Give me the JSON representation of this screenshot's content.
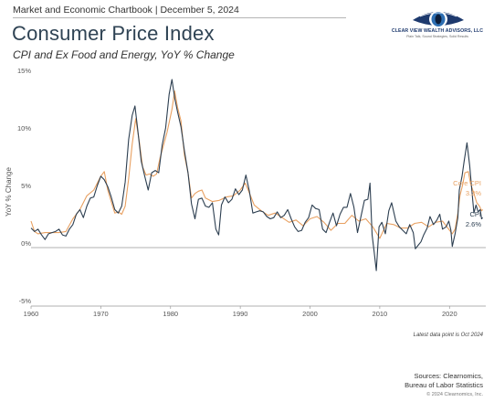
{
  "header": {
    "publication": "Market and Economic Chartbook | December 5, 2024",
    "logo_name": "CLEAR VIEW WEALTH ADVISORS, LLC",
    "logo_tagline": "Plain Talk, Sound Strategies, Solid Results"
  },
  "chart_data": {
    "type": "line",
    "title": "Consumer Price Index",
    "subtitle": "CPI and Ex Food and Energy, YoY % Change",
    "ylabel": "YoY % Change",
    "xlabel": "",
    "xlim": [
      1960,
      2025.2
    ],
    "ylim": [
      -5,
      15
    ],
    "x_ticks": [
      1960,
      1970,
      1980,
      1990,
      2000,
      2010,
      2020
    ],
    "y_ticks": [
      -5,
      0,
      5,
      10,
      15
    ],
    "y_tick_labels": [
      "-5%",
      "0%",
      "5%",
      "10%",
      "15%"
    ],
    "legend": "inline-right",
    "colors": {
      "cpi": "#2c3e50",
      "core": "#e8a061",
      "zero_line": "#999999"
    },
    "series": [
      {
        "name": "CPI",
        "label_value": "2.6%",
        "color": "#2c3e50",
        "points": [
          [
            1960,
            1.7
          ],
          [
            1960.5,
            1.4
          ],
          [
            1961,
            1.6
          ],
          [
            1961.5,
            1.1
          ],
          [
            1962,
            0.7
          ],
          [
            1962.5,
            1.2
          ],
          [
            1963,
            1.3
          ],
          [
            1963.5,
            1.4
          ],
          [
            1964,
            1.6
          ],
          [
            1964.5,
            1.1
          ],
          [
            1965,
            1.0
          ],
          [
            1965.5,
            1.6
          ],
          [
            1966,
            2.0
          ],
          [
            1966.5,
            2.9
          ],
          [
            1967,
            3.3
          ],
          [
            1967.5,
            2.6
          ],
          [
            1968,
            3.6
          ],
          [
            1968.5,
            4.3
          ],
          [
            1969,
            4.4
          ],
          [
            1969.5,
            5.4
          ],
          [
            1970,
            6.2
          ],
          [
            1970.5,
            5.9
          ],
          [
            1971,
            5.3
          ],
          [
            1971.5,
            4.4
          ],
          [
            1972,
            3.3
          ],
          [
            1972.5,
            3.0
          ],
          [
            1973,
            3.6
          ],
          [
            1973.5,
            5.7
          ],
          [
            1974,
            9.4
          ],
          [
            1974.5,
            11.5
          ],
          [
            1974.9,
            12.3
          ],
          [
            1975.3,
            10.2
          ],
          [
            1975.8,
            7.5
          ],
          [
            1976.3,
            6.2
          ],
          [
            1976.8,
            5.0
          ],
          [
            1977.3,
            6.5
          ],
          [
            1977.8,
            6.7
          ],
          [
            1978.3,
            6.5
          ],
          [
            1978.8,
            8.9
          ],
          [
            1979.3,
            10.4
          ],
          [
            1979.8,
            13.3
          ],
          [
            1980.2,
            14.6
          ],
          [
            1980.6,
            13.0
          ],
          [
            1981,
            11.8
          ],
          [
            1981.5,
            10.5
          ],
          [
            1982,
            8.4
          ],
          [
            1982.5,
            6.5
          ],
          [
            1983,
            3.8
          ],
          [
            1983.5,
            2.5
          ],
          [
            1984,
            4.2
          ],
          [
            1984.5,
            4.3
          ],
          [
            1985,
            3.6
          ],
          [
            1985.5,
            3.5
          ],
          [
            1986,
            3.9
          ],
          [
            1986.5,
            1.6
          ],
          [
            1986.9,
            1.1
          ],
          [
            1987.3,
            3.7
          ],
          [
            1987.8,
            4.4
          ],
          [
            1988.3,
            3.9
          ],
          [
            1988.8,
            4.2
          ],
          [
            1989.3,
            5.1
          ],
          [
            1989.8,
            4.6
          ],
          [
            1990.3,
            5.0
          ],
          [
            1990.8,
            6.3
          ],
          [
            1991.3,
            4.9
          ],
          [
            1991.8,
            3.0
          ],
          [
            1992.3,
            3.1
          ],
          [
            1992.8,
            3.2
          ],
          [
            1993.3,
            3.1
          ],
          [
            1993.8,
            2.7
          ],
          [
            1994.3,
            2.5
          ],
          [
            1994.8,
            2.6
          ],
          [
            1995.3,
            3.1
          ],
          [
            1995.8,
            2.6
          ],
          [
            1996.3,
            2.8
          ],
          [
            1996.8,
            3.3
          ],
          [
            1997.3,
            2.5
          ],
          [
            1997.8,
            1.8
          ],
          [
            1998.3,
            1.4
          ],
          [
            1998.8,
            1.5
          ],
          [
            1999.3,
            2.2
          ],
          [
            1999.8,
            2.6
          ],
          [
            2000.3,
            3.7
          ],
          [
            2000.8,
            3.4
          ],
          [
            2001.3,
            3.3
          ],
          [
            2001.8,
            1.6
          ],
          [
            2002.3,
            1.3
          ],
          [
            2002.8,
            2.2
          ],
          [
            2003.3,
            3.0
          ],
          [
            2003.8,
            1.9
          ],
          [
            2004.3,
            2.9
          ],
          [
            2004.8,
            3.5
          ],
          [
            2005.3,
            3.5
          ],
          [
            2005.8,
            4.7
          ],
          [
            2006.3,
            3.5
          ],
          [
            2006.8,
            1.3
          ],
          [
            2007.3,
            2.7
          ],
          [
            2007.8,
            4.1
          ],
          [
            2008.3,
            4.2
          ],
          [
            2008.6,
            5.6
          ],
          [
            2008.9,
            1.1
          ],
          [
            2009.2,
            -0.4
          ],
          [
            2009.5,
            -2.0
          ],
          [
            2009.9,
            1.8
          ],
          [
            2010.3,
            2.2
          ],
          [
            2010.8,
            1.2
          ],
          [
            2011.3,
            3.2
          ],
          [
            2011.7,
            3.9
          ],
          [
            2012.3,
            2.3
          ],
          [
            2012.8,
            1.8
          ],
          [
            2013.3,
            1.5
          ],
          [
            2013.8,
            1.2
          ],
          [
            2014.3,
            2.0
          ],
          [
            2014.8,
            1.3
          ],
          [
            2015.1,
            -0.1
          ],
          [
            2015.5,
            0.2
          ],
          [
            2015.9,
            0.5
          ],
          [
            2016.3,
            1.1
          ],
          [
            2016.8,
            1.7
          ],
          [
            2017.2,
            2.7
          ],
          [
            2017.7,
            2.0
          ],
          [
            2018.2,
            2.4
          ],
          [
            2018.6,
            2.9
          ],
          [
            2019.0,
            1.6
          ],
          [
            2019.5,
            1.8
          ],
          [
            2019.9,
            2.3
          ],
          [
            2020.2,
            1.5
          ],
          [
            2020.4,
            0.1
          ],
          [
            2020.8,
            1.2
          ],
          [
            2021.2,
            2.6
          ],
          [
            2021.4,
            5.0
          ],
          [
            2021.8,
            6.2
          ],
          [
            2022.1,
            7.5
          ],
          [
            2022.5,
            9.1
          ],
          [
            2022.9,
            7.1
          ],
          [
            2023.2,
            5.0
          ],
          [
            2023.5,
            3.0
          ],
          [
            2023.8,
            3.7
          ],
          [
            2024.1,
            3.1
          ],
          [
            2024.4,
            3.3
          ],
          [
            2024.6,
            2.5
          ],
          [
            2024.75,
            2.6
          ]
        ]
      },
      {
        "name": "Core CPI",
        "label_value": "3.3%",
        "color": "#e8a061",
        "points": [
          [
            1960,
            2.3
          ],
          [
            1960.5,
            1.4
          ],
          [
            1961,
            1.2
          ],
          [
            1962,
            1.3
          ],
          [
            1963,
            1.3
          ],
          [
            1964,
            1.3
          ],
          [
            1965,
            1.4
          ],
          [
            1966,
            2.5
          ],
          [
            1967,
            3.3
          ],
          [
            1968,
            4.5
          ],
          [
            1969,
            5.0
          ],
          [
            1970,
            6.2
          ],
          [
            1970.5,
            6.6
          ],
          [
            1971,
            5.0
          ],
          [
            1971.5,
            4.0
          ],
          [
            1972,
            3.0
          ],
          [
            1972.5,
            3.1
          ],
          [
            1973,
            2.9
          ],
          [
            1973.5,
            3.6
          ],
          [
            1974,
            6.0
          ],
          [
            1974.5,
            9.0
          ],
          [
            1975,
            11.2
          ],
          [
            1975.5,
            9.3
          ],
          [
            1976,
            7.0
          ],
          [
            1976.5,
            6.3
          ],
          [
            1977,
            6.4
          ],
          [
            1977.5,
            6.2
          ],
          [
            1978,
            6.4
          ],
          [
            1978.5,
            7.8
          ],
          [
            1979,
            8.9
          ],
          [
            1979.5,
            10.0
          ],
          [
            1980.2,
            12.0
          ],
          [
            1980.6,
            13.6
          ],
          [
            1981,
            12.2
          ],
          [
            1981.5,
            11.0
          ],
          [
            1982,
            8.0
          ],
          [
            1982.5,
            6.5
          ],
          [
            1983,
            4.3
          ],
          [
            1983.5,
            4.7
          ],
          [
            1984,
            4.9
          ],
          [
            1984.5,
            5.0
          ],
          [
            1985,
            4.3
          ],
          [
            1986,
            4.0
          ],
          [
            1987,
            4.1
          ],
          [
            1988,
            4.4
          ],
          [
            1989,
            4.5
          ],
          [
            1990,
            5.0
          ],
          [
            1990.7,
            5.6
          ],
          [
            1991,
            5.2
          ],
          [
            1992,
            3.7
          ],
          [
            1993,
            3.2
          ],
          [
            1994,
            2.8
          ],
          [
            1995,
            3.0
          ],
          [
            1996,
            2.6
          ],
          [
            1997,
            2.2
          ],
          [
            1998,
            2.4
          ],
          [
            1999,
            1.9
          ],
          [
            2000,
            2.5
          ],
          [
            2001,
            2.7
          ],
          [
            2002,
            2.2
          ],
          [
            2003,
            1.5
          ],
          [
            2004,
            2.1
          ],
          [
            2005,
            2.1
          ],
          [
            2006,
            2.8
          ],
          [
            2007,
            2.3
          ],
          [
            2008,
            2.5
          ],
          [
            2009,
            1.8
          ],
          [
            2010,
            0.8
          ],
          [
            2011,
            2.1
          ],
          [
            2012,
            2.0
          ],
          [
            2013,
            1.7
          ],
          [
            2014,
            1.7
          ],
          [
            2015,
            2.1
          ],
          [
            2016,
            2.2
          ],
          [
            2017,
            1.8
          ],
          [
            2018,
            2.2
          ],
          [
            2019,
            2.3
          ],
          [
            2020.4,
            1.2
          ],
          [
            2020.8,
            1.6
          ],
          [
            2021.2,
            3.0
          ],
          [
            2021.5,
            4.5
          ],
          [
            2021.9,
            5.5
          ],
          [
            2022.2,
            6.5
          ],
          [
            2022.7,
            6.6
          ],
          [
            2023,
            5.6
          ],
          [
            2023.5,
            4.7
          ],
          [
            2023.9,
            3.9
          ],
          [
            2024.3,
            3.6
          ],
          [
            2024.6,
            3.2
          ],
          [
            2024.75,
            3.3
          ]
        ]
      }
    ],
    "footnote": "Latest data point is Oct 2024",
    "sources": [
      "Sources: Clearnomics,",
      "Bureau of Labor Statistics"
    ],
    "copyright": "© 2024 Clearnomics, Inc."
  }
}
